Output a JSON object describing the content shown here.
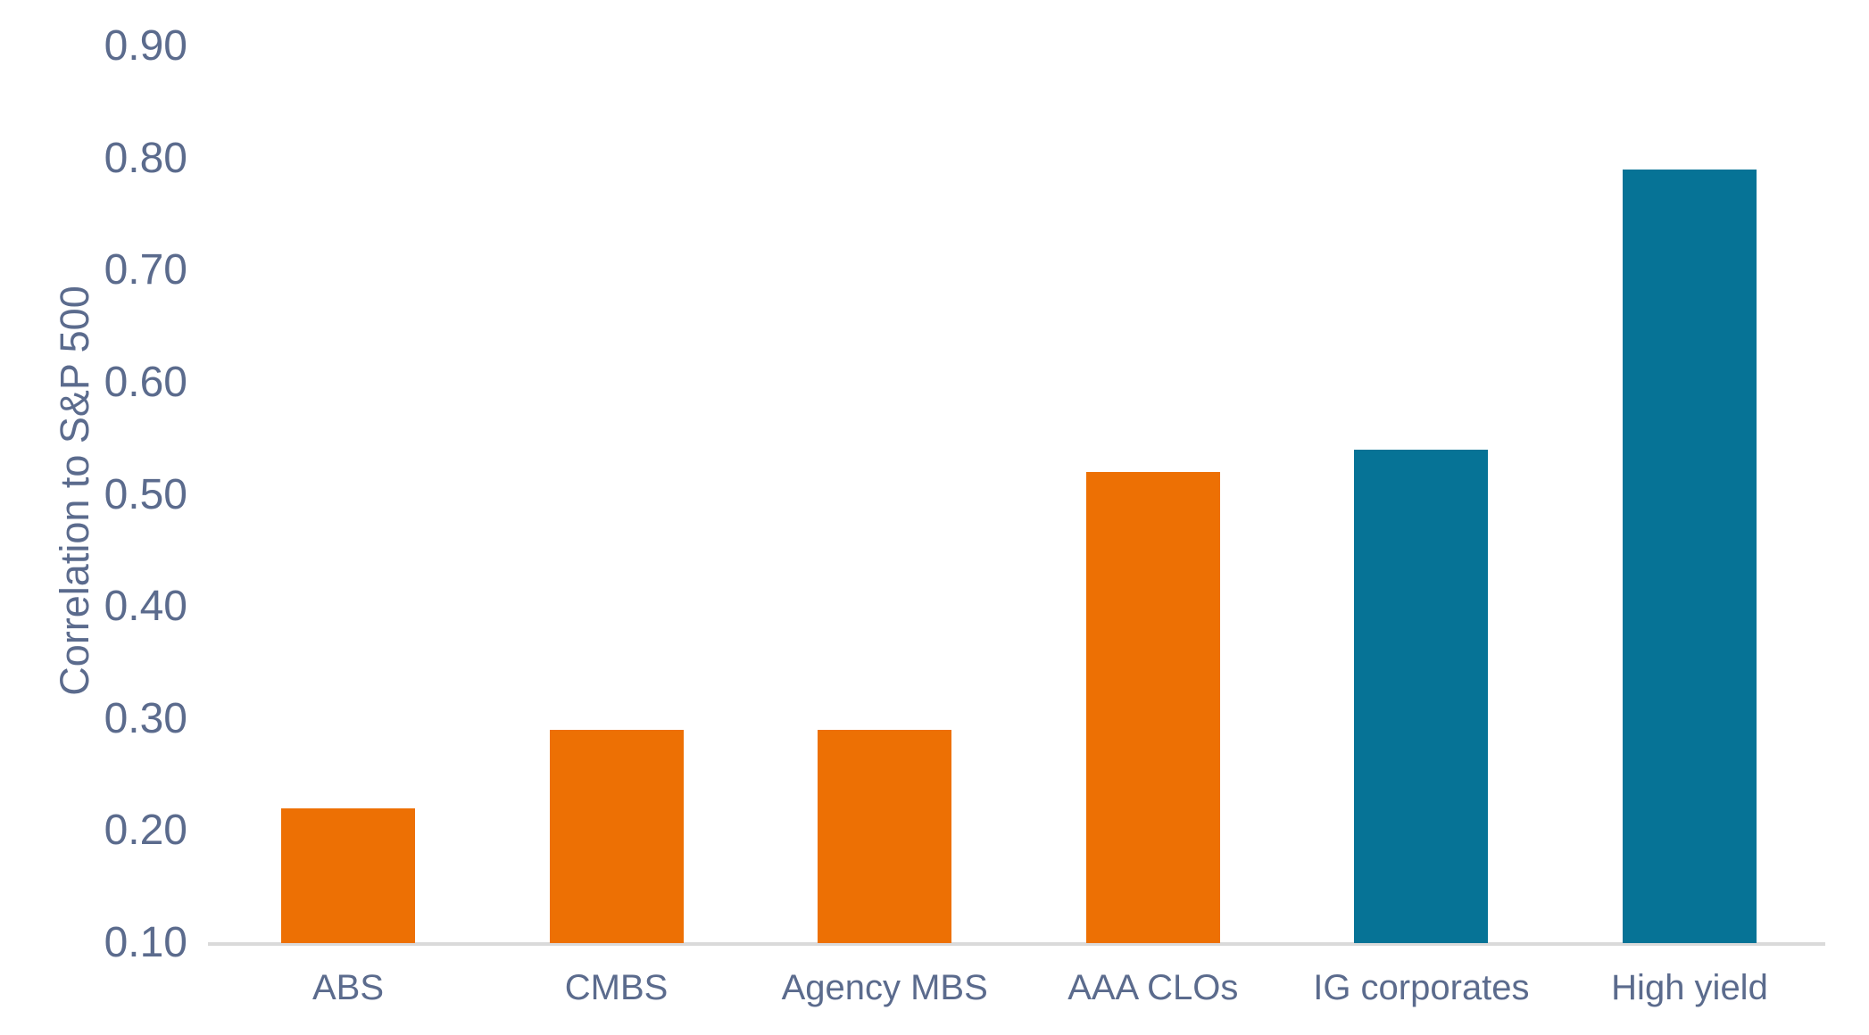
{
  "chart_data": {
    "type": "bar",
    "title": "",
    "xlabel": "",
    "ylabel": "Correlation to S&P 500",
    "categories": [
      "ABS",
      "CMBS",
      "Agency MBS",
      "AAA CLOs",
      "IG corporates",
      "High yield"
    ],
    "values": [
      0.22,
      0.29,
      0.29,
      0.52,
      0.54,
      0.79
    ],
    "bar_colors": [
      "#ED7004",
      "#ED7004",
      "#ED7004",
      "#ED7004",
      "#067396",
      "#067396"
    ],
    "ylim": [
      0.1,
      0.9
    ],
    "yticks": [
      0.1,
      0.2,
      0.3,
      0.4,
      0.5,
      0.6,
      0.7,
      0.8,
      0.9
    ],
    "ytick_labels": [
      "0.10",
      "0.20",
      "0.30",
      "0.40",
      "0.50",
      "0.60",
      "0.70",
      "0.80",
      "0.90"
    ],
    "grid": false,
    "legend": "none"
  },
  "colors": {
    "background": "#FFFFFF",
    "text": "#5B6B8D",
    "axis_line": "#DADADA",
    "orange": "#ED7004",
    "teal": "#067396"
  }
}
